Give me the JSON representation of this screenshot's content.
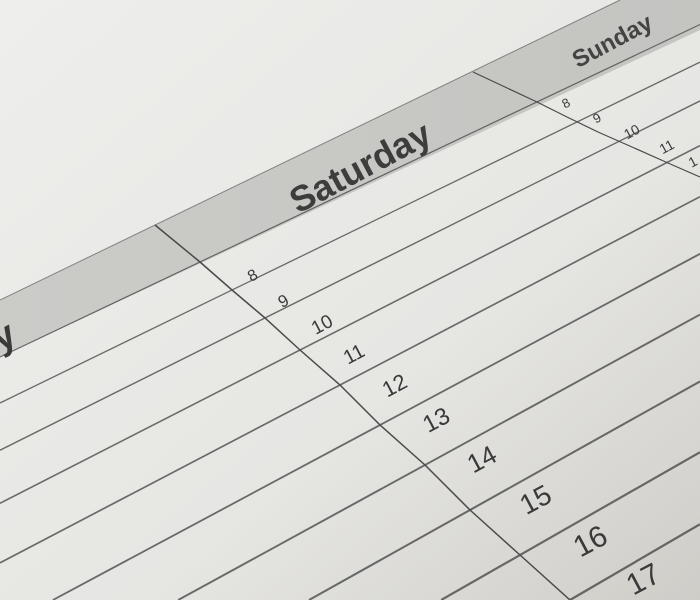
{
  "planner": {
    "days": [
      {
        "label": "y",
        "partial": true
      },
      {
        "label": "Saturday"
      },
      {
        "label": "Sunday"
      }
    ],
    "saturday_hours": [
      "8",
      "9",
      "10",
      "11",
      "12",
      "13",
      "14",
      "15",
      "16",
      "17"
    ],
    "sunday_hours": [
      "8",
      "9",
      "10",
      "11",
      "1"
    ]
  },
  "colors": {
    "paper": "#ebebe8",
    "header_band": "#c8c8c5",
    "line": "#4a4a4a",
    "text": "#3a3a3a"
  }
}
